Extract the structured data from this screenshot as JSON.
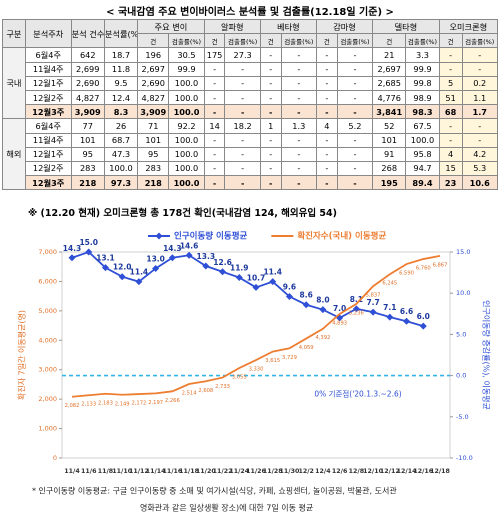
{
  "table": {
    "title": "< 국내감염 주요 변이바이러스 분석률 및 검출률(12.18일 기준) >",
    "header": {
      "top": [
        "구분",
        "분석주차",
        "분석 건수",
        "분석률(%)",
        "주요 변이",
        "알파형",
        "베타형",
        "감마형",
        "델타형",
        "오미크론형"
      ],
      "sub": [
        "건",
        "검출률(%)",
        "건",
        "검출률(%)",
        "건",
        "검출률(%)",
        "건",
        "검출률(%)",
        "건",
        "검출률(%)",
        "건",
        "검출률(%)"
      ]
    },
    "groups": [
      {
        "label": "국내",
        "rows": [
          [
            "6월4주",
            "642",
            "18.7",
            "196",
            "30.5",
            "175",
            "27.3",
            "-",
            "-",
            "-",
            "-",
            "21",
            "3.3",
            "-",
            "-"
          ],
          [
            "11월4주",
            "2,699",
            "11.8",
            "2,697",
            "99.9",
            "-",
            "-",
            "-",
            "-",
            "-",
            "-",
            "2,697",
            "99.9",
            "-",
            "-"
          ],
          [
            "12월1주",
            "2,690",
            "9.5",
            "2,690",
            "100.0",
            "-",
            "-",
            "-",
            "-",
            "-",
            "-",
            "2,685",
            "99.8",
            "5",
            "0.2"
          ],
          [
            "12월2주",
            "4,827",
            "12.4",
            "4,827",
            "100.0",
            "-",
            "-",
            "-",
            "-",
            "-",
            "-",
            "4,776",
            "98.9",
            "51",
            "1.1"
          ],
          [
            "12월3주",
            "3,909",
            "8.3",
            "3,909",
            "100.0",
            "-",
            "-",
            "-",
            "-",
            "-",
            "-",
            "3,841",
            "98.3",
            "68",
            "1.7"
          ]
        ]
      },
      {
        "label": "해외",
        "rows": [
          [
            "6월4주",
            "77",
            "26",
            "71",
            "92.2",
            "14",
            "18.2",
            "1",
            "1.3",
            "4",
            "5.2",
            "52",
            "67.5",
            "-",
            "-"
          ],
          [
            "11월4주",
            "101",
            "68.7",
            "101",
            "100.0",
            "-",
            "-",
            "-",
            "-",
            "-",
            "-",
            "101",
            "100.0",
            "-",
            "-"
          ],
          [
            "12월1주",
            "95",
            "47.3",
            "95",
            "100.0",
            "-",
            "-",
            "-",
            "-",
            "-",
            "-",
            "91",
            "95.8",
            "4",
            "4.2"
          ],
          [
            "12월2주",
            "283",
            "100.0",
            "283",
            "100.0",
            "-",
            "-",
            "-",
            "-",
            "-",
            "-",
            "268",
            "94.7",
            "15",
            "5.3"
          ],
          [
            "12월3주",
            "218",
            "97.3",
            "218",
            "100.0",
            "-",
            "-",
            "-",
            "-",
            "-",
            "-",
            "195",
            "89.4",
            "23",
            "10.6"
          ]
        ]
      }
    ],
    "note": "※ (12.20 현재) 오미크론형 총 178건 확인(국내감염 124, 해외유입 54)"
  },
  "chart_data": {
    "type": "line",
    "categories": [
      "11/4",
      "11/6",
      "11/8",
      "11/10",
      "11/12",
      "11/14",
      "11/16",
      "11/18",
      "11/20",
      "11/22",
      "11/24",
      "11/26",
      "11/28",
      "11/30",
      "12/2",
      "12/4",
      "12/6",
      "12/8",
      "12/10",
      "12/12",
      "12/14",
      "12/16",
      "12/18"
    ],
    "series": [
      {
        "name": "인구이동량 이동평균",
        "color": "#2e4fd6",
        "axis": "y2",
        "marker": "diamond",
        "values": [
          14.3,
          15.0,
          13.1,
          12.0,
          11.4,
          13.0,
          14.3,
          14.6,
          13.3,
          12.6,
          11.9,
          10.7,
          11.4,
          9.6,
          8.6,
          8.0,
          7.0,
          8.1,
          7.7,
          7.1,
          6.6,
          6.0,
          null
        ],
        "value_labels": [
          "14.3",
          "15.0",
          "13.1",
          "12.0",
          "11.4",
          "13.0",
          "14.3",
          "14.6",
          "13.3",
          "12.6",
          "11.9",
          "10.7",
          "11.4",
          "9.6",
          "8.6",
          "8.0",
          "7.0",
          "8.1",
          "7.7",
          "7.1",
          "6.6",
          "6.0",
          null
        ]
      },
      {
        "name": "확진자수(국내) 이동평균",
        "color": "#ed7d31",
        "values": [
          2082,
          2133,
          2183,
          2149,
          2172,
          2197,
          2266,
          2514,
          2608,
          2733,
          3055,
          3330,
          3615,
          3729,
          4059,
          4392,
          4893,
          5236,
          5837,
          6245,
          6590,
          6760,
          6867
        ],
        "value_labels": [
          "2,082",
          "2,133",
          "2,183",
          "2,149",
          "2,172",
          "2,197",
          "2,266",
          "2,514",
          "2,608",
          "2,733",
          "3,055",
          "3,330",
          "3,615",
          "3,729",
          "4,059",
          "4,392",
          "4,893",
          "5,236",
          "5,837",
          "6,245",
          "6,590",
          "6,760",
          "6,867"
        ]
      }
    ],
    "ylabel": "확진자 7일간 이동평균(명)",
    "y2label": "인구이동량 증감률(%), 이동평균",
    "ylim": [
      0,
      7000
    ],
    "yticks": [
      0,
      {
        "value": 1000,
        "label": "1,000"
      },
      {
        "value": 2000,
        "label": "2,000"
      },
      {
        "value": 3000,
        "label": "3,000"
      },
      {
        "value": 4000,
        "label": "4,000"
      },
      {
        "value": 5000,
        "label": "5,000"
      },
      {
        "value": 6000,
        "label": "6,000"
      },
      {
        "value": 7000,
        "label": "7,000"
      }
    ],
    "y2lim": [
      -10,
      15
    ],
    "y2ticks": [
      {
        "value": -10,
        "label": "-10.0"
      },
      {
        "value": -5,
        "label": "-5.0"
      },
      {
        "value": 0,
        "label": "0.0"
      },
      {
        "value": 5,
        "label": "5.0"
      },
      {
        "value": 10,
        "label": "10.0"
      },
      {
        "value": 15,
        "label": "15.0"
      }
    ],
    "reference": {
      "value": 0,
      "label": "0% 기준점('20.1.3.~2.6)",
      "color": "#33b5e5"
    },
    "legend": "top",
    "footnote": [
      "* 인구이동량 이동평균: 구글 인구이동량 중 소매 및 여가시설(식당, 카페, 쇼핑센터, 놀이공원, 박물관, 도서관",
      "영화관과 같은 일상생활 장소)에 대한 7일 이동 평균"
    ]
  }
}
